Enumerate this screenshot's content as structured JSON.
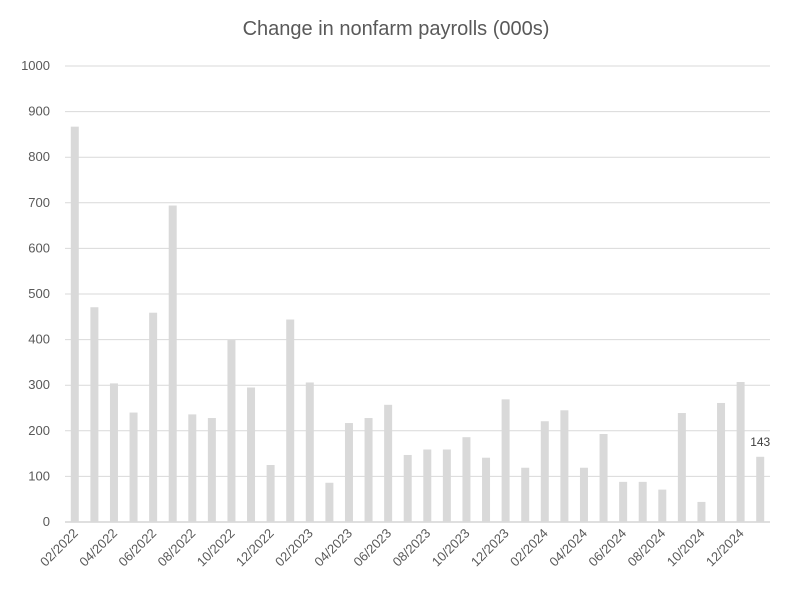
{
  "chart_data": {
    "type": "bar",
    "title": "Change in nonfarm payrolls (000s)",
    "xlabel": "",
    "ylabel": "",
    "ylim": [
      0,
      1000
    ],
    "yticks": [
      0,
      100,
      200,
      300,
      400,
      500,
      600,
      700,
      800,
      900,
      1000
    ],
    "grid": true,
    "legend": "none",
    "bar_color": "#d9d9d9",
    "grid_color": "#d9d9d9",
    "categories": [
      "02/2022",
      "03/2022",
      "04/2022",
      "05/2022",
      "06/2022",
      "07/2022",
      "08/2022",
      "09/2022",
      "10/2022",
      "11/2022",
      "12/2022",
      "01/2023",
      "02/2023",
      "03/2023",
      "04/2023",
      "05/2023",
      "06/2023",
      "07/2023",
      "08/2023",
      "09/2023",
      "10/2023",
      "11/2023",
      "12/2023",
      "01/2024",
      "02/2024",
      "03/2024",
      "04/2024",
      "05/2024",
      "06/2024",
      "07/2024",
      "08/2024",
      "09/2024",
      "10/2024",
      "11/2024",
      "12/2024",
      "01/2025"
    ],
    "x_tick_labels": [
      "02/2022",
      "04/2022",
      "06/2022",
      "08/2022",
      "10/2022",
      "12/2022",
      "02/2023",
      "04/2023",
      "06/2023",
      "08/2023",
      "10/2023",
      "12/2023",
      "02/2024",
      "04/2024",
      "06/2024",
      "08/2024",
      "10/2024",
      "12/2024"
    ],
    "values": [
      867,
      471,
      304,
      240,
      459,
      694,
      236,
      228,
      399,
      295,
      125,
      444,
      306,
      86,
      217,
      228,
      257,
      147,
      159,
      159,
      186,
      141,
      269,
      119,
      221,
      245,
      119,
      193,
      88,
      88,
      71,
      239,
      44,
      261,
      307,
      143
    ],
    "annotations": [
      {
        "category": "01/2025",
        "text": "143"
      }
    ]
  }
}
